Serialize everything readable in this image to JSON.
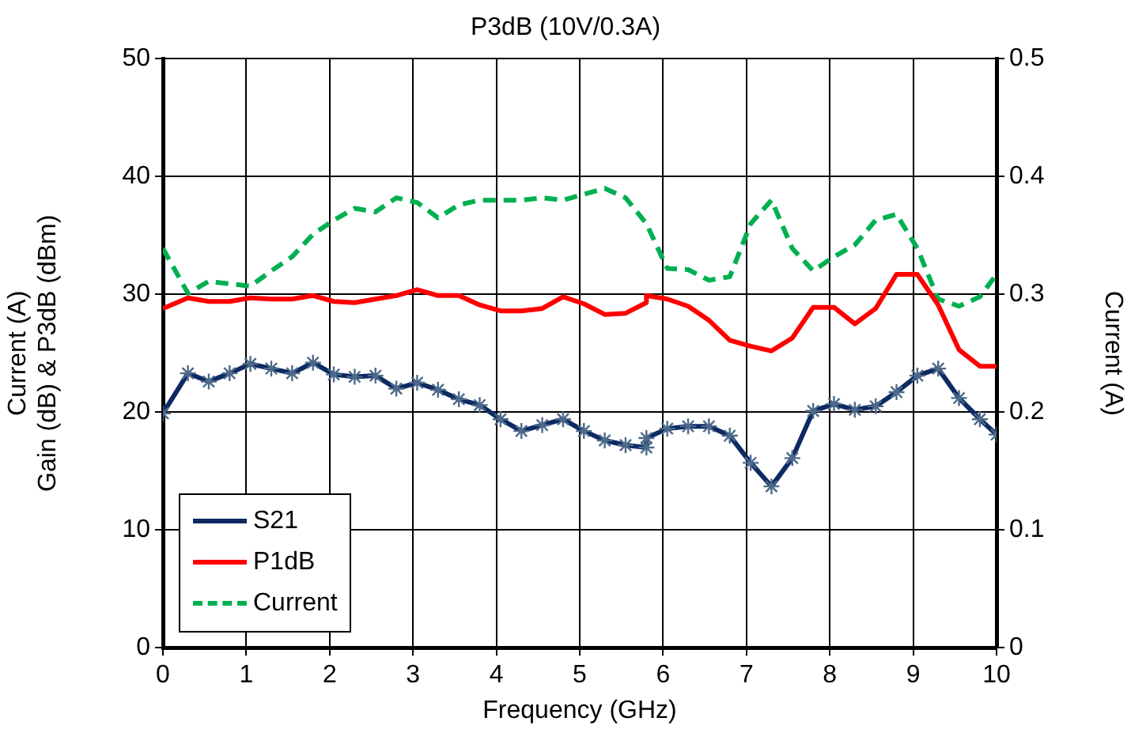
{
  "chart_data": {
    "type": "line",
    "title": "P3dB (10V/0.3A)",
    "xlabel": "Frequency (GHz)",
    "ylabel": "Current (A)\nGain (dB) & P3dB (dBm)",
    "y2label": "Current (A)",
    "x": [
      0,
      0.3,
      0.55,
      0.8,
      1.05,
      1.3,
      1.55,
      1.8,
      2.05,
      2.3,
      2.55,
      2.8,
      3.05,
      3.3,
      3.55,
      3.8,
      4.05,
      4.3,
      4.55,
      4.8,
      5.05,
      5.3,
      5.55,
      5.8,
      5.8,
      6.05,
      6.3,
      6.55,
      6.8,
      7.05,
      7.3,
      7.55,
      7.8,
      8.05,
      8.3,
      8.55,
      8.8,
      9.05,
      9.3,
      9.55,
      9.8,
      10
    ],
    "series": [
      {
        "name": "S21",
        "color": "#0d2a63",
        "marker": "cross",
        "line_style": "solid",
        "values": [
          19.9,
          23.3,
          22.6,
          23.3,
          24.1,
          23.7,
          23.3,
          24.2,
          23.2,
          23.0,
          23.1,
          22.0,
          22.5,
          21.9,
          21.1,
          20.6,
          19.4,
          18.4,
          18.9,
          19.4,
          18.4,
          17.6,
          17.2,
          17.0,
          17.8,
          18.6,
          18.8,
          18.8,
          18.0,
          15.7,
          13.7,
          16.1,
          20.1,
          20.7,
          20.2,
          20.5,
          21.7,
          23.1,
          23.7,
          21.2,
          19.4,
          18.1
        ]
      },
      {
        "name": "P1dB",
        "color": "#ff0000",
        "marker": "none",
        "line_style": "solid",
        "values": [
          28.8,
          29.7,
          29.4,
          29.4,
          29.7,
          29.6,
          29.6,
          29.9,
          29.4,
          29.3,
          29.6,
          29.9,
          30.4,
          29.9,
          29.9,
          29.1,
          28.6,
          28.6,
          28.8,
          29.8,
          29.2,
          28.3,
          28.4,
          29.3,
          29.9,
          29.6,
          29.0,
          27.8,
          26.1,
          25.6,
          25.2,
          26.3,
          28.9,
          28.9,
          27.5,
          28.8,
          31.7,
          31.7,
          29.1,
          25.3,
          23.9,
          23.9
        ]
      },
      {
        "name": "Current",
        "color": "#00b050",
        "marker": "none",
        "line_style": "dashed",
        "axis": "y2",
        "values": [
          0.339,
          0.301,
          0.311,
          0.309,
          0.307,
          0.32,
          0.332,
          0.351,
          0.363,
          0.373,
          0.37,
          0.382,
          0.378,
          0.365,
          0.376,
          0.38,
          0.38,
          0.38,
          0.382,
          0.38,
          0.385,
          0.39,
          0.382,
          0.36,
          0.36,
          0.322,
          0.321,
          0.312,
          0.315,
          0.36,
          0.38,
          0.339,
          0.32,
          0.332,
          0.342,
          0.363,
          0.368,
          0.339,
          0.296,
          0.29,
          0.298,
          0.317
        ]
      }
    ],
    "xlim": [
      0,
      10
    ],
    "xticks": [
      0,
      1,
      2,
      3,
      4,
      5,
      6,
      7,
      8,
      9,
      10
    ],
    "ylim": [
      0,
      50
    ],
    "yticks": [
      0,
      10,
      20,
      30,
      40,
      50
    ],
    "y2lim": [
      0,
      0.5
    ],
    "y2ticks": [
      0,
      0.1,
      0.2,
      0.3,
      0.4,
      0.5
    ],
    "grid": true,
    "legend": "bottom left"
  }
}
